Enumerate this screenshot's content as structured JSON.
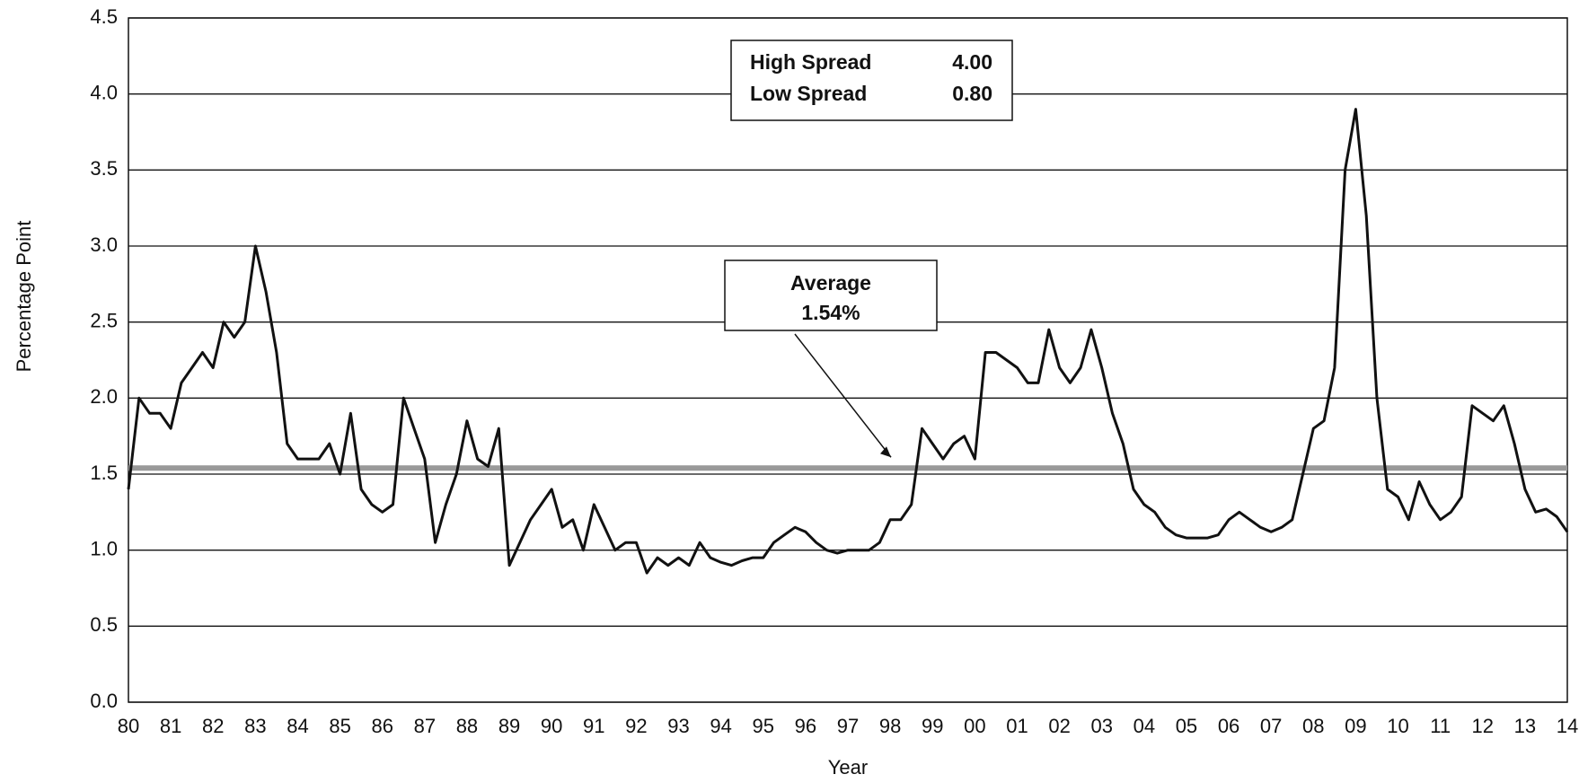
{
  "chart_data": {
    "type": "line",
    "y_label": "Percentage Point",
    "x_label": "Year",
    "categories": [
      "80",
      null,
      null,
      null,
      "81",
      null,
      null,
      null,
      "82",
      null,
      null,
      null,
      "83",
      null,
      null,
      null,
      "84",
      null,
      null,
      null,
      "85",
      null,
      null,
      null,
      "86",
      null,
      null,
      null,
      "87",
      null,
      null,
      null,
      "88",
      null,
      null,
      null,
      "89",
      null,
      null,
      null,
      "90",
      null,
      null,
      null,
      "91",
      null,
      null,
      null,
      "92",
      null,
      null,
      null,
      "93",
      null,
      null,
      null,
      "94",
      null,
      null,
      null,
      "95",
      null,
      null,
      null,
      "96",
      null,
      null,
      null,
      "97",
      null,
      null,
      null,
      "98",
      null,
      null,
      null,
      "99",
      null,
      null,
      null,
      "00",
      null,
      null,
      null,
      "01",
      null,
      null,
      null,
      "02",
      null,
      null,
      null,
      "03",
      null,
      null,
      null,
      "04",
      null,
      null,
      null,
      "05",
      null,
      null,
      null,
      "06",
      null,
      null,
      null,
      "07",
      null,
      null,
      null,
      "08",
      null,
      null,
      null,
      "09",
      null,
      null,
      null,
      "10",
      null,
      null,
      null,
      "11",
      null,
      null,
      null,
      "12",
      null,
      null,
      null,
      "13",
      null,
      null,
      null,
      "14"
    ],
    "values": [
      1.4,
      2.0,
      1.9,
      1.9,
      1.8,
      2.1,
      2.2,
      2.3,
      2.2,
      2.5,
      2.4,
      2.5,
      3.0,
      2.7,
      2.3,
      1.7,
      1.6,
      1.6,
      1.6,
      1.7,
      1.5,
      1.9,
      1.4,
      1.3,
      1.25,
      1.3,
      2.0,
      1.8,
      1.6,
      1.05,
      1.3,
      1.5,
      1.85,
      1.6,
      1.55,
      1.8,
      0.9,
      1.05,
      1.2,
      1.3,
      1.4,
      1.15,
      1.2,
      1.0,
      1.3,
      1.15,
      1.0,
      1.05,
      1.05,
      0.85,
      0.95,
      0.9,
      0.95,
      0.9,
      1.05,
      0.95,
      0.92,
      0.9,
      0.93,
      0.95,
      0.95,
      1.05,
      1.1,
      1.15,
      1.12,
      1.05,
      1.0,
      0.98,
      1.0,
      1.0,
      1.0,
      1.05,
      1.2,
      1.2,
      1.3,
      1.8,
      1.7,
      1.6,
      1.7,
      1.75,
      1.6,
      2.3,
      2.3,
      2.25,
      2.2,
      2.1,
      2.1,
      2.45,
      2.2,
      2.1,
      2.2,
      2.45,
      2.2,
      1.9,
      1.7,
      1.4,
      1.3,
      1.25,
      1.15,
      1.1,
      1.08,
      1.08,
      1.08,
      1.1,
      1.2,
      1.25,
      1.2,
      1.15,
      1.12,
      1.15,
      1.2,
      1.5,
      1.8,
      1.85,
      2.2,
      3.5,
      3.9,
      3.2,
      2.0,
      1.4,
      1.35,
      1.2,
      1.45,
      1.3,
      1.2,
      1.25,
      1.35,
      1.95,
      1.9,
      1.85,
      1.95,
      1.7,
      1.4,
      1.25,
      1.27,
      1.22,
      1.12
    ],
    "color": "#111111",
    "ylim": [
      0,
      4.5
    ],
    "yticks": [
      {
        "value": 0,
        "label": "0.0"
      },
      0.5,
      {
        "value": 1,
        "label": "1.0"
      },
      1.5,
      {
        "value": 2,
        "label": "2.0"
      },
      2.5,
      {
        "value": 3,
        "label": "3.0"
      },
      3.5,
      {
        "value": 4,
        "label": "4.0"
      },
      4.5
    ],
    "grid": true,
    "average": {
      "value": 1.54,
      "title": "Average",
      "label": "1.54%",
      "color": "#999999"
    },
    "spread_box": {
      "high_label": "High Spread",
      "high_value": "4.00",
      "low_label": "Low Spread",
      "low_value": "0.80"
    }
  }
}
